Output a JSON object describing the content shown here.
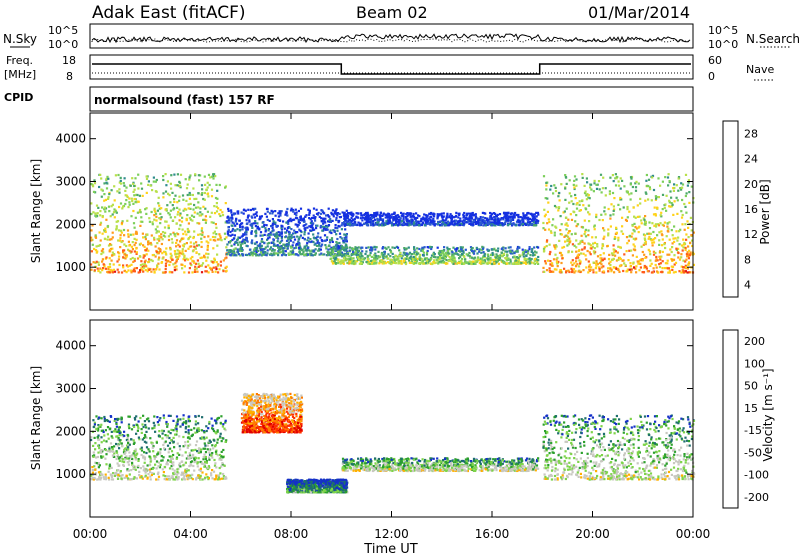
{
  "header": {
    "station": "Adak East (fitACF)",
    "beam": "Beam 02",
    "date": "01/Mar/2014"
  },
  "strip_panels": {
    "nsky_label": "N.Sky",
    "nsearch_label": "N.Search",
    "nsky_ticks": [
      "10^5",
      "10^0"
    ],
    "nsearch_ticks": [
      "10^5",
      "10^0"
    ],
    "freq_label": "Freq.",
    "freq_unit": "[MHz]",
    "freq_ticks": [
      "18",
      "8"
    ],
    "nave_label": "Nave",
    "nave_ticks": [
      "60",
      "0"
    ],
    "cpid_label": "CPID",
    "cpid_value": "normalsound (fast) 157 RF"
  },
  "chart_data": [
    {
      "type": "heatmap",
      "quantity": "Power",
      "ylabel": "Slant Range [km]",
      "yticks": [
        "1000",
        "2000",
        "3000",
        "4000"
      ],
      "ylim": [
        0,
        4600
      ],
      "colorbar_label": "Power [dB]",
      "colorbar_ticks": [
        "28",
        "24",
        "20",
        "16",
        "12",
        "8",
        "4"
      ],
      "colors": [
        "#1430e0",
        "#2a5ad0",
        "#2f8c8c",
        "#4aa86a",
        "#7ccf5a",
        "#b8e04a",
        "#ffd21a",
        "#ff9a1a",
        "#ff5a1a",
        "#e01414"
      ],
      "regions": [
        {
          "t_start": 0.0,
          "t_end": 5.4,
          "r_low": 900,
          "r_high": 3200,
          "level": 0.75
        },
        {
          "t_start": 5.4,
          "t_end": 10.2,
          "r_low": 1300,
          "r_high": 2400,
          "level": 0.3
        },
        {
          "t_start": 9.5,
          "t_end": 17.8,
          "r_low": 1100,
          "r_high": 1500,
          "level": 0.55
        },
        {
          "t_start": 10.0,
          "t_end": 17.8,
          "r_low": 2000,
          "r_high": 2300,
          "level": 0.15
        },
        {
          "t_start": 18.0,
          "t_end": 24.0,
          "r_low": 900,
          "r_high": 3200,
          "level": 0.75
        }
      ]
    },
    {
      "type": "heatmap",
      "quantity": "Velocity",
      "ylabel": "Slant Range [km]",
      "yticks": [
        "1000",
        "2000",
        "3000",
        "4000"
      ],
      "ylim": [
        0,
        4600
      ],
      "colorbar_label": "Velocity [m s⁻¹]",
      "colorbar_ticks": [
        "200",
        "100",
        "50",
        "15",
        "-15",
        "-50",
        "-100",
        "-200"
      ],
      "colors": [
        "#1430c8",
        "#1e6e6e",
        "#2ca02c",
        "#7ed44a",
        "#c8c8c0",
        "#c8c8c0",
        "#ffb000",
        "#ff7a00",
        "#ff3000",
        "#e00000"
      ],
      "regions": [
        {
          "t_start": 0.0,
          "t_end": 5.4,
          "r_low": 900,
          "r_high": 2400,
          "level": 0.5
        },
        {
          "t_start": 6.0,
          "t_end": 8.4,
          "r_low": 2000,
          "r_high": 2900,
          "level": 0.9
        },
        {
          "t_start": 7.8,
          "t_end": 10.2,
          "r_low": 600,
          "r_high": 900,
          "level": 0.3
        },
        {
          "t_start": 10.0,
          "t_end": 17.8,
          "r_low": 1100,
          "r_high": 1400,
          "level": 0.5
        },
        {
          "t_start": 18.0,
          "t_end": 24.0,
          "r_low": 900,
          "r_high": 2400,
          "level": 0.5
        }
      ]
    }
  ],
  "xaxis": {
    "ticks": [
      "00:00",
      "04:00",
      "08:00",
      "12:00",
      "16:00",
      "20:00",
      "00:00"
    ],
    "tick_hours": [
      0,
      4,
      8,
      12,
      16,
      20,
      24
    ],
    "label": "Time UT"
  }
}
